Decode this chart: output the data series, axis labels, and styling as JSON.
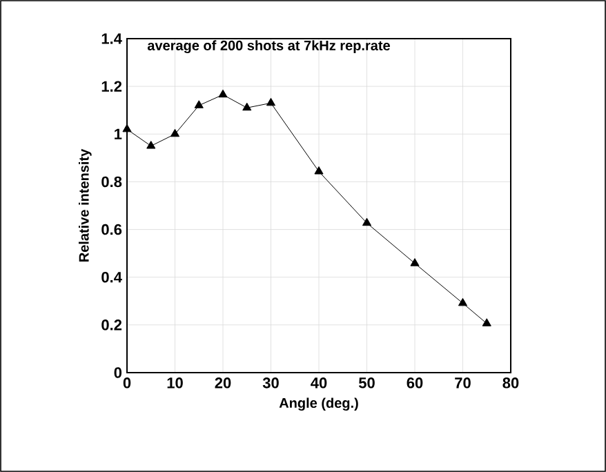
{
  "chart_data": {
    "type": "line",
    "title": "average of 200 shots at 7kHz rep.rate",
    "xlabel": "Angle (deg.)",
    "ylabel": "Relative intensity",
    "x": [
      0,
      5,
      10,
      15,
      20,
      25,
      30,
      40,
      50,
      60,
      70,
      75
    ],
    "values": [
      1.02,
      0.95,
      1.0,
      1.12,
      1.165,
      1.11,
      1.13,
      0.843,
      0.627,
      0.458,
      0.291,
      0.206
    ],
    "color": "#000000",
    "marker": "triangle",
    "line_style": "solid",
    "grid": true,
    "xlim": [
      0,
      80
    ],
    "xticks": [
      0,
      10,
      20,
      30,
      40,
      50,
      60,
      70,
      80
    ],
    "ylim": [
      0,
      1.4
    ],
    "yticks": [
      0,
      0.2,
      0.4,
      0.6,
      0.8,
      1,
      1.2,
      1.4
    ]
  }
}
